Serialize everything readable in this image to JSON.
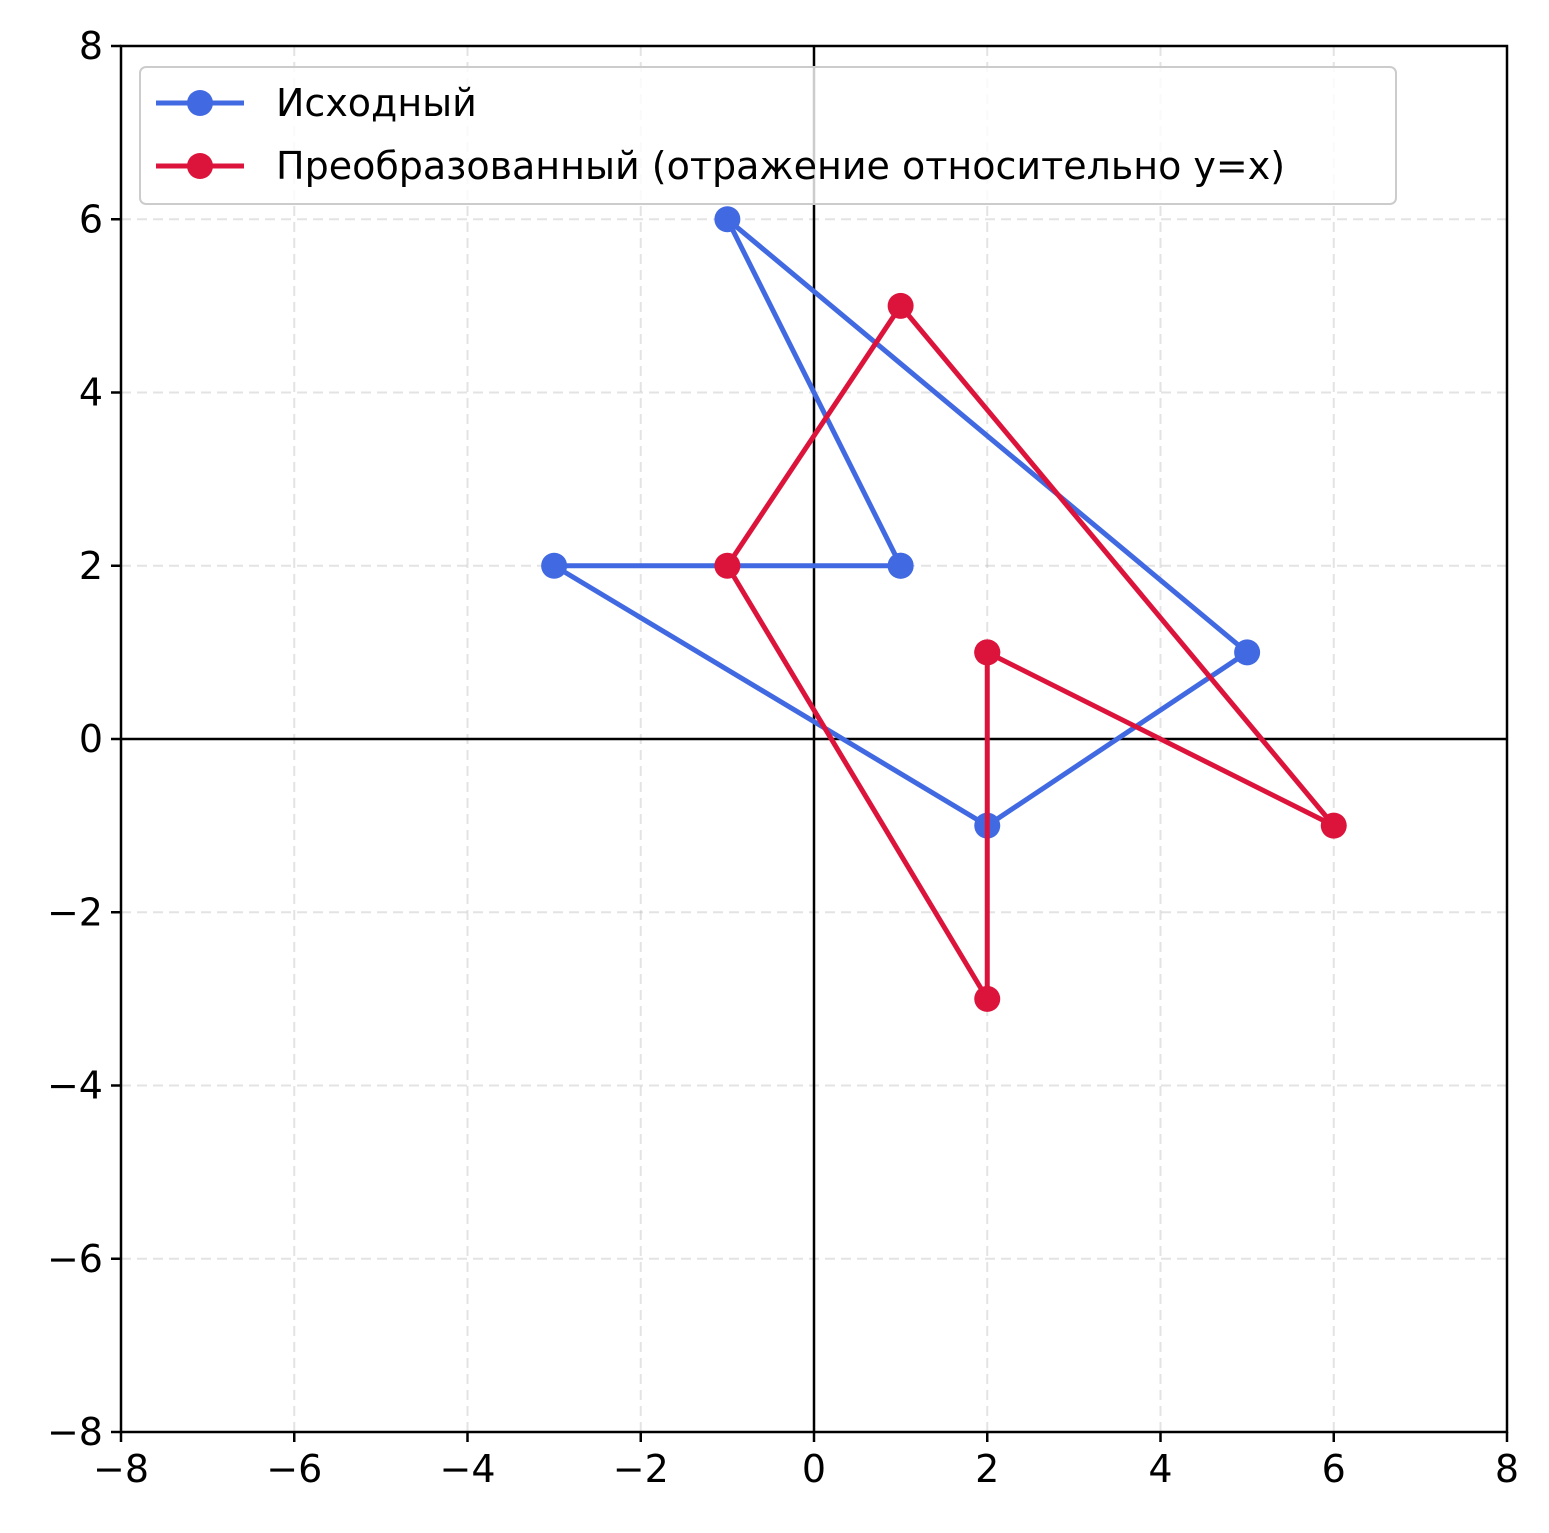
{
  "chart_data": {
    "type": "line",
    "title": "",
    "xlabel": "",
    "ylabel": "",
    "xlim": [
      -8,
      8
    ],
    "ylim": [
      -8,
      8
    ],
    "xticks": [
      -8,
      -6,
      -4,
      -2,
      0,
      2,
      4,
      6,
      8
    ],
    "yticks": [
      -8,
      -6,
      -4,
      -2,
      0,
      2,
      4,
      6,
      8
    ],
    "xtick_labels": [
      "−8",
      "−6",
      "−4",
      "−2",
      "0",
      "2",
      "4",
      "6",
      "8"
    ],
    "ytick_labels": [
      "−8",
      "−6",
      "−4",
      "−2",
      "0",
      "2",
      "4",
      "6",
      "8"
    ],
    "grid": true,
    "grid_style": "dashed",
    "axes_lines_at_zero": true,
    "legend_position": "upper-left",
    "series": [
      {
        "name": "Исходный",
        "color": "#4169E1",
        "marker": "circle",
        "points": [
          [
            1,
            2
          ],
          [
            -1,
            6
          ],
          [
            5,
            1
          ],
          [
            2,
            -1
          ],
          [
            -3,
            2
          ],
          [
            1,
            2
          ]
        ]
      },
      {
        "name": "Преобразованный (отражение относительно y=x)",
        "color": "#DC143C",
        "marker": "circle",
        "points": [
          [
            2,
            1
          ],
          [
            6,
            -1
          ],
          [
            1,
            5
          ],
          [
            -1,
            2
          ],
          [
            2,
            -3
          ],
          [
            2,
            1
          ]
        ]
      }
    ]
  }
}
